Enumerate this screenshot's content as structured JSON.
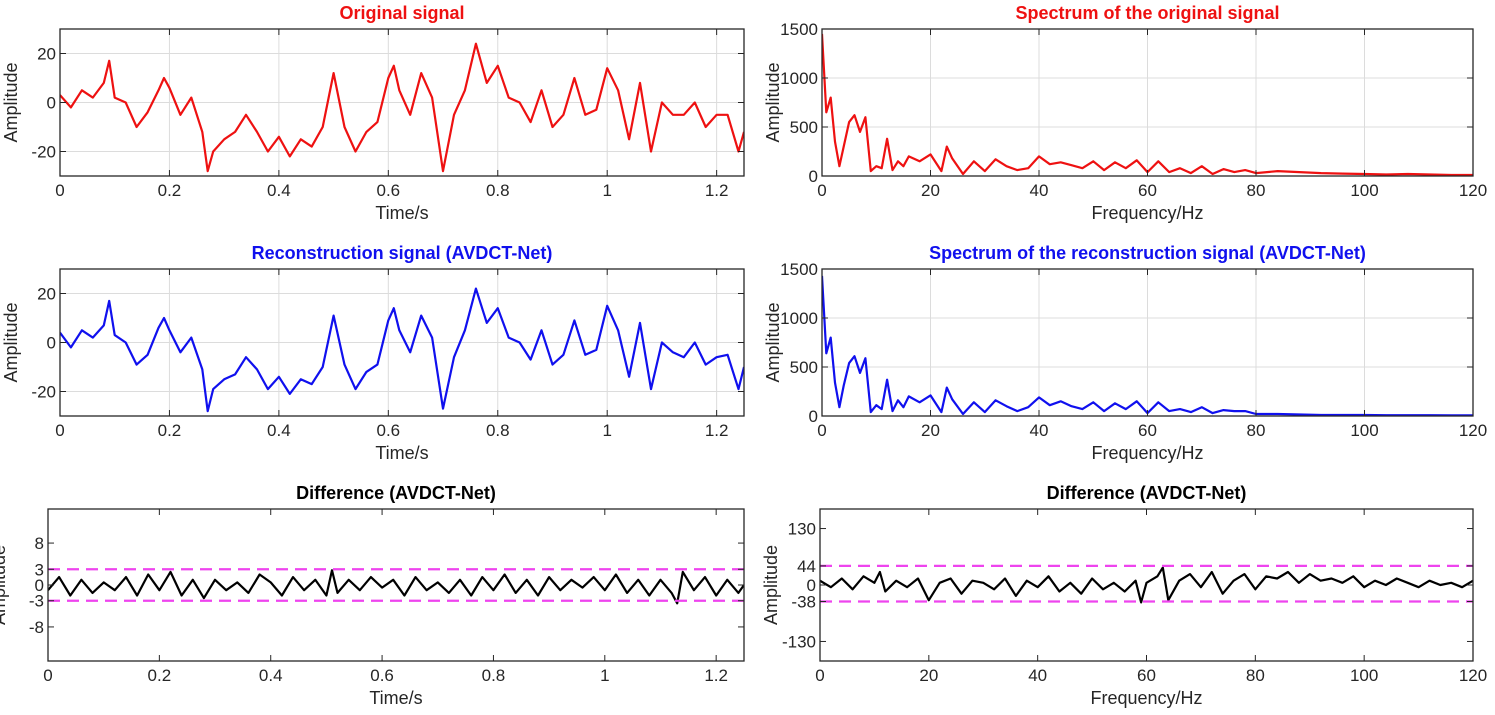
{
  "figure": {
    "colors": {
      "red": "#ee1111",
      "blue": "#1010ee",
      "black": "#000000",
      "threshold": "#ee44ee",
      "grid": "#dcdcdc",
      "axis": "#262626"
    }
  },
  "chart_data": [
    {
      "id": "p1",
      "type": "line",
      "title": "Original signal",
      "title_color": "#ee1111",
      "xlabel": "Time/s",
      "ylabel": "Amplitude",
      "xlim": [
        0,
        1.25
      ],
      "ylim": [
        -30,
        30
      ],
      "xticks": [
        0,
        0.2,
        0.4,
        0.6,
        0.8,
        1,
        1.2
      ],
      "xtick_labels": [
        "0",
        "0.2",
        "0.4",
        "0.6",
        "0.8",
        "1",
        "1.2"
      ],
      "yticks": [
        -20,
        0,
        20
      ],
      "ytick_labels": [
        "-20",
        "0",
        "20"
      ],
      "grid": true,
      "series": [
        {
          "color": "#ee1111",
          "x": [
            0,
            0.02,
            0.04,
            0.06,
            0.08,
            0.09,
            0.1,
            0.12,
            0.14,
            0.16,
            0.18,
            0.19,
            0.2,
            0.22,
            0.24,
            0.26,
            0.27,
            0.28,
            0.3,
            0.32,
            0.34,
            0.36,
            0.38,
            0.4,
            0.42,
            0.44,
            0.46,
            0.48,
            0.5,
            0.52,
            0.54,
            0.56,
            0.58,
            0.6,
            0.61,
            0.62,
            0.64,
            0.66,
            0.68,
            0.7,
            0.72,
            0.74,
            0.76,
            0.78,
            0.8,
            0.82,
            0.84,
            0.86,
            0.88,
            0.9,
            0.92,
            0.94,
            0.96,
            0.98,
            1.0,
            1.02,
            1.04,
            1.06,
            1.08,
            1.1,
            1.12,
            1.14,
            1.16,
            1.18,
            1.2,
            1.22,
            1.24,
            1.25
          ],
          "y": [
            3,
            -2,
            5,
            2,
            8,
            17,
            2,
            0,
            -10,
            -4,
            5,
            10,
            6,
            -5,
            2,
            -12,
            -28,
            -20,
            -15,
            -12,
            -5,
            -12,
            -20,
            -14,
            -22,
            -15,
            -18,
            -10,
            12,
            -10,
            -20,
            -12,
            -8,
            10,
            15,
            5,
            -5,
            12,
            2,
            -28,
            -5,
            5,
            24,
            8,
            15,
            2,
            0,
            -8,
            5,
            -10,
            -5,
            10,
            -5,
            -3,
            14,
            5,
            -15,
            8,
            -20,
            0,
            -5,
            -5,
            0,
            -10,
            -5,
            -5,
            -20,
            -12
          ]
        }
      ]
    },
    {
      "id": "p2",
      "type": "line",
      "title": "Spectrum of the original signal",
      "title_color": "#ee1111",
      "xlabel": "Frequency/Hz",
      "ylabel": "Amplitude",
      "xlim": [
        0,
        120
      ],
      "ylim": [
        0,
        1500
      ],
      "xticks": [
        0,
        20,
        40,
        60,
        80,
        100,
        120
      ],
      "xtick_labels": [
        "0",
        "20",
        "40",
        "60",
        "80",
        "100",
        "120"
      ],
      "yticks": [
        0,
        500,
        1000,
        1500
      ],
      "ytick_labels": [
        "0",
        "500",
        "1000",
        "1500"
      ],
      "grid": true,
      "series": [
        {
          "color": "#ee1111",
          "x": [
            0,
            0.8,
            1.6,
            2.4,
            3.2,
            4,
            5,
            6,
            7,
            8,
            9,
            10,
            11,
            12,
            13,
            14,
            15,
            16,
            18,
            20,
            22,
            23,
            24,
            26,
            28,
            30,
            32,
            34,
            36,
            38,
            40,
            42,
            44,
            46,
            48,
            50,
            52,
            54,
            56,
            58,
            60,
            62,
            64,
            66,
            68,
            70,
            72,
            74,
            76,
            78,
            80,
            84,
            88,
            92,
            96,
            100,
            104,
            108,
            112,
            116,
            120
          ],
          "y": [
            1450,
            650,
            800,
            350,
            100,
            300,
            550,
            620,
            450,
            600,
            50,
            100,
            80,
            380,
            60,
            150,
            100,
            200,
            150,
            220,
            50,
            300,
            180,
            20,
            150,
            50,
            170,
            100,
            60,
            80,
            200,
            120,
            140,
            110,
            80,
            150,
            60,
            140,
            80,
            160,
            40,
            150,
            40,
            80,
            30,
            100,
            20,
            70,
            40,
            60,
            30,
            50,
            40,
            30,
            25,
            20,
            15,
            20,
            15,
            10,
            10
          ]
        }
      ]
    },
    {
      "id": "p3",
      "type": "line",
      "title": "Reconstruction signal (AVDCT-Net)",
      "title_color": "#1010ee",
      "xlabel": "Time/s",
      "ylabel": "Amplitude",
      "xlim": [
        0,
        1.25
      ],
      "ylim": [
        -30,
        30
      ],
      "xticks": [
        0,
        0.2,
        0.4,
        0.6,
        0.8,
        1,
        1.2
      ],
      "xtick_labels": [
        "0",
        "0.2",
        "0.4",
        "0.6",
        "0.8",
        "1",
        "1.2"
      ],
      "yticks": [
        -20,
        0,
        20
      ],
      "ytick_labels": [
        "-20",
        "0",
        "20"
      ],
      "grid": true,
      "series": [
        {
          "color": "#1010ee",
          "x": [
            0,
            0.02,
            0.04,
            0.06,
            0.08,
            0.09,
            0.1,
            0.12,
            0.14,
            0.16,
            0.18,
            0.19,
            0.2,
            0.22,
            0.24,
            0.26,
            0.27,
            0.28,
            0.3,
            0.32,
            0.34,
            0.36,
            0.38,
            0.4,
            0.42,
            0.44,
            0.46,
            0.48,
            0.5,
            0.52,
            0.54,
            0.56,
            0.58,
            0.6,
            0.61,
            0.62,
            0.64,
            0.66,
            0.68,
            0.7,
            0.72,
            0.74,
            0.76,
            0.78,
            0.8,
            0.82,
            0.84,
            0.86,
            0.88,
            0.9,
            0.92,
            0.94,
            0.96,
            0.98,
            1.0,
            1.02,
            1.04,
            1.06,
            1.08,
            1.1,
            1.12,
            1.14,
            1.16,
            1.18,
            1.2,
            1.22,
            1.24,
            1.25
          ],
          "y": [
            4,
            -2,
            5,
            2,
            7,
            17,
            3,
            0,
            -9,
            -5,
            6,
            10,
            5,
            -4,
            2,
            -11,
            -28,
            -19,
            -15,
            -13,
            -6,
            -11,
            -19,
            -14,
            -21,
            -15,
            -17,
            -10,
            11,
            -9,
            -19,
            -12,
            -9,
            9,
            14,
            5,
            -4,
            11,
            2,
            -27,
            -6,
            5,
            22,
            8,
            14,
            2,
            0,
            -7,
            5,
            -9,
            -5,
            9,
            -5,
            -3,
            15,
            5,
            -14,
            8,
            -19,
            0,
            -4,
            -6,
            0,
            -9,
            -6,
            -5,
            -19,
            -10
          ]
        }
      ]
    },
    {
      "id": "p4",
      "type": "line",
      "title": "Spectrum of the reconstruction signal (AVDCT-Net)",
      "title_color": "#1010ee",
      "xlabel": "Frequency/Hz",
      "ylabel": "Amplitude",
      "xlim": [
        0,
        120
      ],
      "ylim": [
        0,
        1500
      ],
      "xticks": [
        0,
        20,
        40,
        60,
        80,
        100,
        120
      ],
      "xtick_labels": [
        "0",
        "20",
        "40",
        "60",
        "80",
        "100",
        "120"
      ],
      "yticks": [
        0,
        500,
        1000,
        1500
      ],
      "ytick_labels": [
        "0",
        "500",
        "1000",
        "1500"
      ],
      "grid": true,
      "series": [
        {
          "color": "#1010ee",
          "x": [
            0,
            0.8,
            1.6,
            2.4,
            3.2,
            4,
            5,
            6,
            7,
            8,
            9,
            10,
            11,
            12,
            13,
            14,
            15,
            16,
            18,
            20,
            22,
            23,
            24,
            26,
            28,
            30,
            32,
            34,
            36,
            38,
            40,
            42,
            44,
            46,
            48,
            50,
            52,
            54,
            56,
            58,
            60,
            62,
            64,
            66,
            68,
            70,
            72,
            74,
            76,
            78,
            80,
            84,
            88,
            92,
            96,
            100,
            104,
            108,
            112,
            116,
            120
          ],
          "y": [
            1430,
            640,
            800,
            340,
            90,
            310,
            540,
            610,
            440,
            590,
            40,
            110,
            70,
            370,
            50,
            160,
            90,
            200,
            140,
            210,
            40,
            290,
            170,
            20,
            140,
            40,
            160,
            100,
            50,
            90,
            190,
            110,
            150,
            100,
            70,
            140,
            50,
            130,
            70,
            150,
            30,
            140,
            50,
            70,
            40,
            90,
            30,
            60,
            50,
            50,
            20,
            20,
            15,
            10,
            10,
            10,
            8,
            8,
            8,
            6,
            6
          ]
        }
      ]
    },
    {
      "id": "p5",
      "type": "line",
      "title": "Difference (AVDCT-Net)",
      "title_color": "#000000",
      "xlabel": "Time/s",
      "ylabel": "Amplitude",
      "xlim": [
        0,
        1.25
      ],
      "ylim": [
        -14.5,
        14.5
      ],
      "xticks": [
        0,
        0.2,
        0.4,
        0.6,
        0.8,
        1,
        1.2
      ],
      "xtick_labels": [
        "0",
        "0.2",
        "0.4",
        "0.6",
        "0.8",
        "1",
        "1.2"
      ],
      "yticks": [
        -8,
        -3,
        0,
        3,
        8
      ],
      "ytick_labels": [
        "-8",
        "-3",
        "0",
        "3",
        "8"
      ],
      "grid": false,
      "thresholds": [
        3,
        -3
      ],
      "series": [
        {
          "color": "#000000",
          "x": [
            0,
            0.02,
            0.04,
            0.06,
            0.08,
            0.1,
            0.12,
            0.14,
            0.16,
            0.18,
            0.2,
            0.22,
            0.24,
            0.26,
            0.28,
            0.3,
            0.32,
            0.34,
            0.36,
            0.38,
            0.4,
            0.42,
            0.44,
            0.46,
            0.48,
            0.5,
            0.51,
            0.52,
            0.54,
            0.56,
            0.58,
            0.6,
            0.62,
            0.64,
            0.66,
            0.68,
            0.7,
            0.72,
            0.74,
            0.76,
            0.78,
            0.8,
            0.82,
            0.84,
            0.86,
            0.88,
            0.9,
            0.92,
            0.94,
            0.96,
            0.98,
            1.0,
            1.02,
            1.04,
            1.06,
            1.08,
            1.1,
            1.12,
            1.13,
            1.14,
            1.16,
            1.18,
            1.2,
            1.22,
            1.24,
            1.25
          ],
          "y": [
            -1,
            1.5,
            -2,
            1,
            -1.5,
            0.5,
            -1,
            1.5,
            -2,
            2,
            -1,
            2.5,
            -2,
            1,
            -2.5,
            1,
            -1,
            0.5,
            -1.5,
            2,
            0.5,
            -2,
            1.5,
            -1,
            1,
            -2,
            2.8,
            -1.5,
            1,
            -1,
            1.5,
            -0.5,
            1,
            -2,
            1.5,
            -1,
            0.5,
            -1.5,
            1,
            -2,
            1.5,
            -1,
            2,
            -1.5,
            1,
            -2,
            1.5,
            -1,
            1,
            -0.5,
            1.5,
            -1,
            2,
            -1.5,
            1,
            -2,
            1,
            -1.5,
            -3.5,
            2.5,
            -1,
            1.5,
            -2,
            1,
            -1.5,
            0
          ]
        }
      ]
    },
    {
      "id": "p6",
      "type": "line",
      "title": "Difference (AVDCT-Net)",
      "title_color": "#000000",
      "xlabel": "Frequency/Hz",
      "ylabel": "Amplitude",
      "xlim": [
        0,
        120
      ],
      "ylim": [
        -175,
        175
      ],
      "xticks": [
        0,
        20,
        40,
        60,
        80,
        100,
        120
      ],
      "xtick_labels": [
        "0",
        "20",
        "40",
        "60",
        "80",
        "100",
        "120"
      ],
      "yticks": [
        -130,
        -38,
        0,
        44,
        130
      ],
      "ytick_labels": [
        "-130",
        "-38",
        "0",
        "44",
        "130"
      ],
      "grid": false,
      "thresholds": [
        44,
        -38
      ],
      "series": [
        {
          "color": "#000000",
          "x": [
            0,
            2,
            4,
            6,
            8,
            10,
            11,
            12,
            14,
            16,
            18,
            20,
            22,
            24,
            26,
            28,
            30,
            32,
            34,
            36,
            38,
            40,
            42,
            44,
            46,
            48,
            50,
            52,
            54,
            56,
            58,
            59,
            60,
            62,
            63,
            64,
            66,
            68,
            70,
            72,
            74,
            76,
            78,
            80,
            82,
            84,
            86,
            88,
            90,
            92,
            94,
            96,
            98,
            100,
            102,
            104,
            106,
            108,
            110,
            112,
            114,
            116,
            118,
            120
          ],
          "y": [
            10,
            -5,
            15,
            -10,
            20,
            5,
            30,
            -15,
            10,
            -5,
            15,
            -35,
            5,
            15,
            -20,
            10,
            5,
            -10,
            15,
            -25,
            10,
            -5,
            20,
            -15,
            5,
            -20,
            15,
            -10,
            5,
            -15,
            10,
            -40,
            5,
            20,
            40,
            -35,
            10,
            25,
            -5,
            30,
            -20,
            10,
            25,
            -10,
            20,
            15,
            30,
            5,
            25,
            10,
            15,
            5,
            20,
            -5,
            10,
            0,
            15,
            5,
            -5,
            10,
            0,
            5,
            -5,
            10
          ]
        }
      ]
    }
  ]
}
